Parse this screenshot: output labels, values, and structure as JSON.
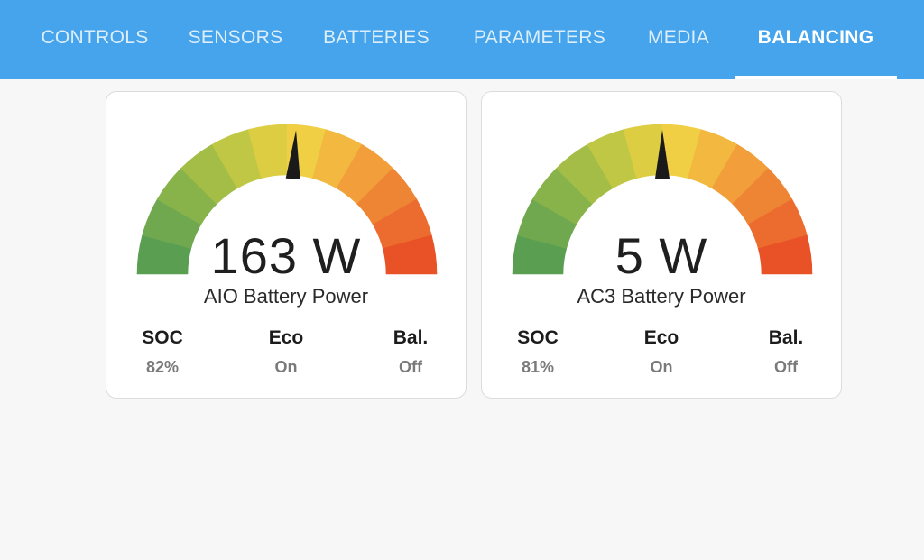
{
  "tabs": [
    {
      "label": "CONTROLS",
      "active": false
    },
    {
      "label": "SENSORS",
      "active": false
    },
    {
      "label": "BATTERIES",
      "active": false
    },
    {
      "label": "PARAMETERS",
      "active": false
    },
    {
      "label": "MEDIA",
      "active": false
    },
    {
      "label": "BALANCING",
      "active": true
    }
  ],
  "cards": [
    {
      "value_text": "163 W",
      "label": "AIO Battery Power",
      "needle_fraction": 0.52,
      "stats": [
        {
          "label": "SOC",
          "value": "82%"
        },
        {
          "label": "Eco",
          "value": "On"
        },
        {
          "label": "Bal.",
          "value": "Off"
        }
      ]
    },
    {
      "value_text": "5 W",
      "label": "AC3 Battery Power",
      "needle_fraction": 0.5,
      "stats": [
        {
          "label": "SOC",
          "value": "81%"
        },
        {
          "label": "Eco",
          "value": "On"
        },
        {
          "label": "Bal.",
          "value": "Off"
        }
      ]
    }
  ],
  "gauge_colors": [
    "#5a9e52",
    "#6fa84f",
    "#88b34b",
    "#a3bd47",
    "#c0c744",
    "#dccd42",
    "#f1cf44",
    "#f2b840",
    "#f19e3b",
    "#ee8534",
    "#ec6b2e",
    "#e95227"
  ],
  "needle_color": "#1a1a1a"
}
